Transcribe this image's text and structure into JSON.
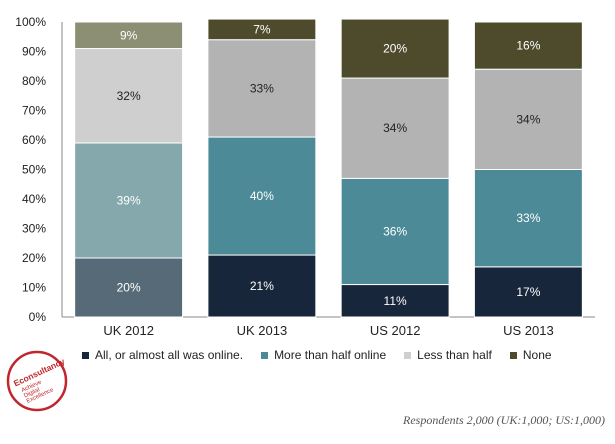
{
  "chart_data": {
    "type": "bar",
    "stacked": true,
    "percent": true,
    "categories": [
      "UK 2012",
      "UK 2013",
      "US 2012",
      "US 2013"
    ],
    "ylim": [
      0,
      100
    ],
    "yticks": [
      "0%",
      "10%",
      "20%",
      "30%",
      "40%",
      "50%",
      "60%",
      "70%",
      "80%",
      "90%",
      "100%"
    ],
    "legend_position": "bottom",
    "series": [
      {
        "name": "All, or almost all was online.",
        "values": [
          20,
          21,
          11,
          17
        ],
        "labels": [
          "20%",
          "21%",
          "11%",
          "17%"
        ]
      },
      {
        "name": "More than half online",
        "values": [
          39,
          40,
          36,
          33
        ],
        "labels": [
          "39%",
          "40%",
          "36%",
          "33%"
        ]
      },
      {
        "name": "Less than half",
        "values": [
          32,
          33,
          34,
          34
        ],
        "labels": [
          "32%",
          "33%",
          "34%",
          "34%"
        ]
      },
      {
        "name": "None",
        "values": [
          9,
          7,
          20,
          16
        ],
        "labels": [
          "9%",
          "7%",
          "20%",
          "16%"
        ]
      }
    ],
    "colors": {
      "uk2012": [
        "#566b77",
        "#85a8ac",
        "#cfcfcf",
        "#8c8f74"
      ],
      "other": [
        "#17263a",
        "#4b8a96",
        "#b3b3b3",
        "#4d4b2c"
      ],
      "legend": [
        "#17263a",
        "#4b8a96",
        "#cfcfcf",
        "#4d4b2c"
      ],
      "label_light": "#ffffff",
      "label_dark": "#222222"
    }
  },
  "logo": {
    "text_lines": [
      "Econsultancy",
      "Achieve",
      "Digital",
      "Excellence"
    ],
    "color": "#c0262d"
  },
  "footnote": "Respondents 2,000 (UK:1,000; US:1,000)"
}
